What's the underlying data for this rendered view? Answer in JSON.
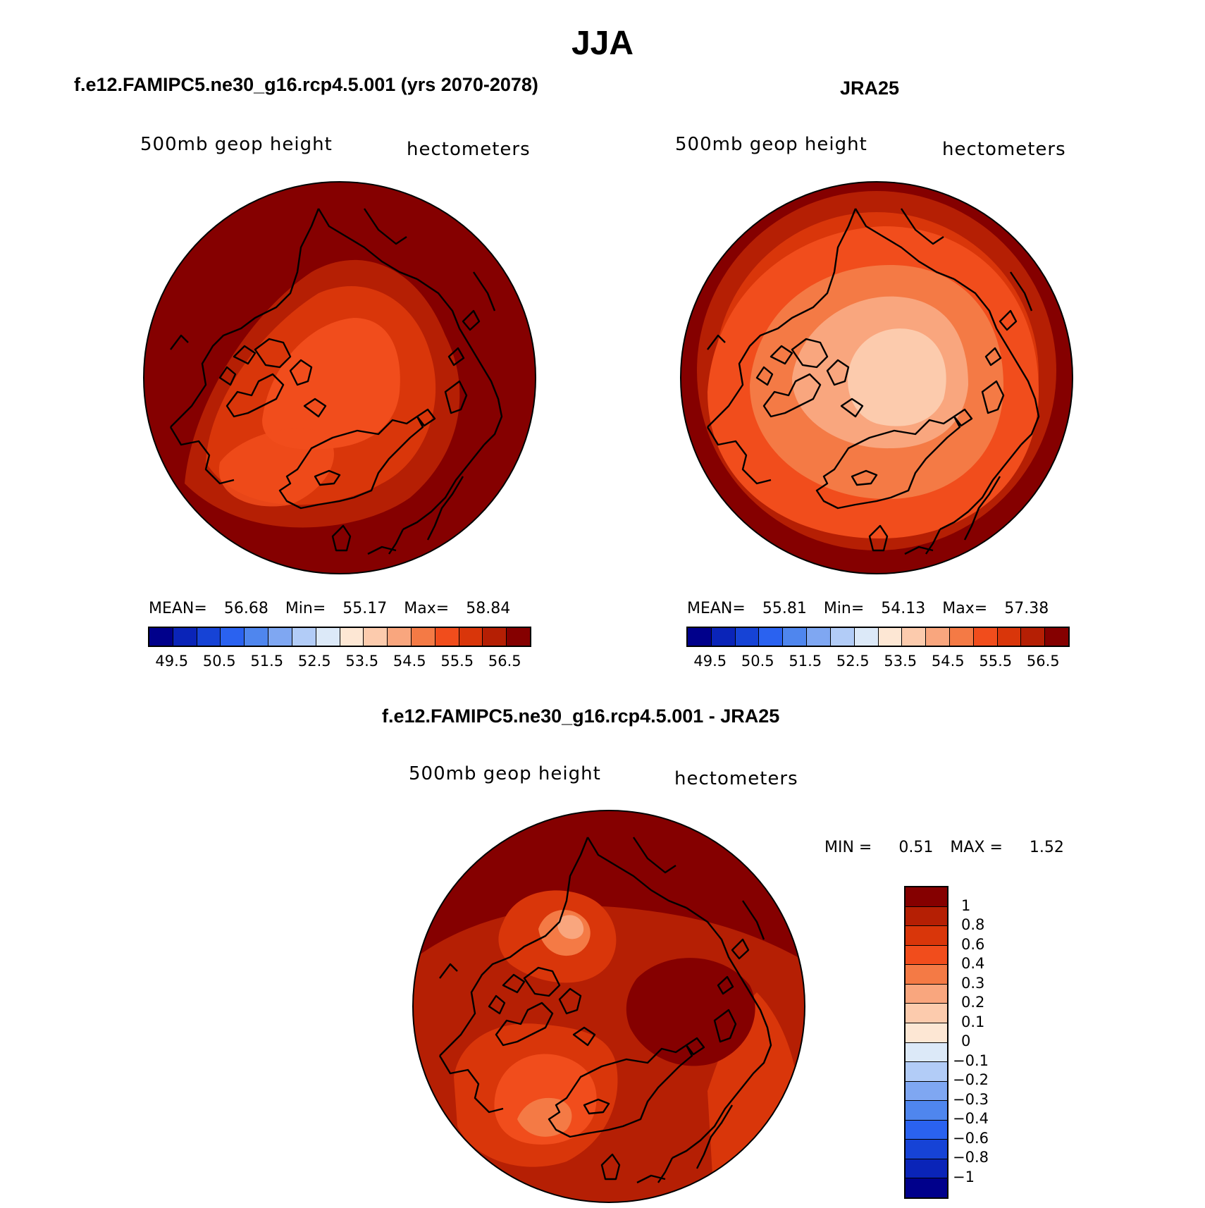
{
  "figure": {
    "title": "JJA",
    "panels": [
      {
        "id": "model",
        "title": "f.e12.FAMIPC5.ne30_g16.rcp4.5.001 (yrs 2070-2078)",
        "variable": "500mb geop height",
        "units": "hectometers",
        "stats": {
          "mean_label": "MEAN=",
          "mean": "56.68",
          "min_label": "Min=",
          "min": "55.17",
          "max_label": "Max=",
          "max": "58.84"
        }
      },
      {
        "id": "obs",
        "title": "JRA25",
        "variable": "500mb geop height",
        "units": "hectometers",
        "stats": {
          "mean_label": "MEAN=",
          "mean": "55.81",
          "min_label": "Min=",
          "min": "54.13",
          "max_label": "Max=",
          "max": "57.38"
        }
      },
      {
        "id": "diff",
        "title": "f.e12.FAMIPC5.ne30_g16.rcp4.5.001 - JRA25",
        "variable": "500mb geop height",
        "units": "hectometers",
        "stats": {
          "min_label": "MIN =",
          "min": "0.51",
          "max_label": "MAX =",
          "max": "1.52"
        }
      }
    ],
    "colorbar_abs": {
      "colors": [
        "#00008b",
        "#0a24b8",
        "#1643d6",
        "#2a62f0",
        "#4f86ee",
        "#7fa7f2",
        "#b2ccf7",
        "#dce9f8",
        "#fde7d4",
        "#fccbad",
        "#f9a67e",
        "#f47a45",
        "#f14d1c",
        "#d9360a",
        "#b51f04",
        "#850000"
      ],
      "tick_labels": [
        "49.5",
        "50.5",
        "51.5",
        "52.5",
        "53.5",
        "54.5",
        "55.5",
        "56.5"
      ]
    },
    "colorbar_diff": {
      "colors": [
        "#850000",
        "#b51f04",
        "#d9360a",
        "#f14d1c",
        "#f47a45",
        "#f9a67e",
        "#fccbad",
        "#fde7d4",
        "#dce9f8",
        "#b2ccf7",
        "#7fa7f2",
        "#4f86ee",
        "#2a62f0",
        "#1643d6",
        "#0a24b8",
        "#00008b"
      ],
      "tick_labels": [
        "1",
        "0.8",
        "0.6",
        "0.4",
        "0.3",
        "0.2",
        "0.1",
        "0",
        "−0.1",
        "−0.2",
        "−0.3",
        "−0.4",
        "−0.6",
        "−0.8",
        "−1"
      ]
    }
  }
}
